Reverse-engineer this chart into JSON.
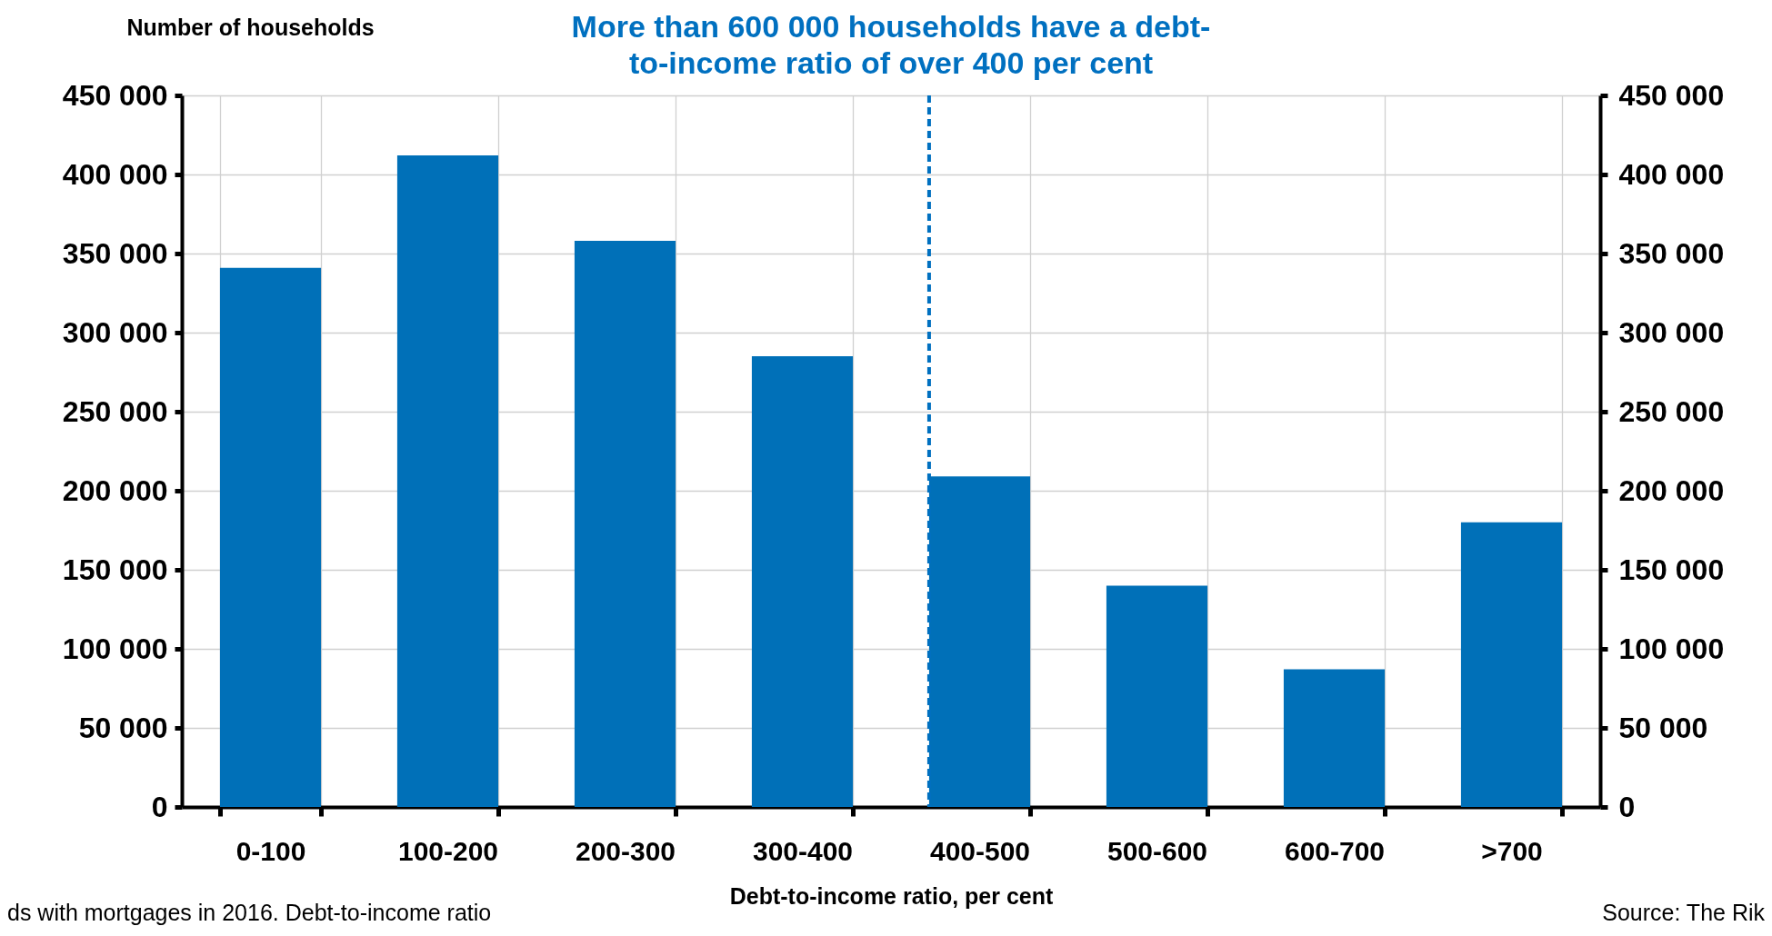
{
  "chart_data": {
    "type": "bar",
    "title": "More than 600 000 households have a debt-\nto-income ratio of over 400 per cent",
    "xlabel": "Debt-to-income ratio, per cent",
    "ylabel": "Number of households",
    "categories": [
      "0-100",
      "100-200",
      "200-300",
      "300-400",
      "400-500",
      "500-600",
      "600-700",
      ">700"
    ],
    "values": [
      341000,
      412000,
      358000,
      285000,
      209000,
      140000,
      87000,
      180000
    ],
    "color": "#0070b8",
    "ylim": [
      0,
      450000
    ],
    "yticks": [
      {
        "value": 0,
        "label": "0"
      },
      {
        "value": 50000,
        "label": "50 000"
      },
      {
        "value": 100000,
        "label": "100 000"
      },
      {
        "value": 150000,
        "label": "150 000"
      },
      {
        "value": 200000,
        "label": "200 000"
      },
      {
        "value": 250000,
        "label": "250 000"
      },
      {
        "value": 300000,
        "label": "300 000"
      },
      {
        "value": 350000,
        "label": "350 000"
      },
      {
        "value": 400000,
        "label": "400 000"
      },
      {
        "value": 450000,
        "label": "450 000"
      }
    ],
    "y2lim": [
      0,
      450000
    ],
    "y2ticks": [
      {
        "value": 0,
        "label": "0"
      },
      {
        "value": 50000,
        "label": "50 000"
      },
      {
        "value": 100000,
        "label": "100 000"
      },
      {
        "value": 150000,
        "label": "150 000"
      },
      {
        "value": 200000,
        "label": "200 000"
      },
      {
        "value": 250000,
        "label": "250 000"
      },
      {
        "value": 300000,
        "label": "300 000"
      },
      {
        "value": 350000,
        "label": "350 000"
      },
      {
        "value": 400000,
        "label": "400 000"
      },
      {
        "value": 450000,
        "label": "450 000"
      }
    ],
    "ref_lines": [
      {
        "axis": "x",
        "value": "400-500",
        "color": "#0070c0",
        "line_style": "dashed"
      }
    ],
    "annotations": [
      "ds with mortgages in 2016. Debt-to-income ratio",
      "Source: The Rik"
    ],
    "grid": true
  }
}
